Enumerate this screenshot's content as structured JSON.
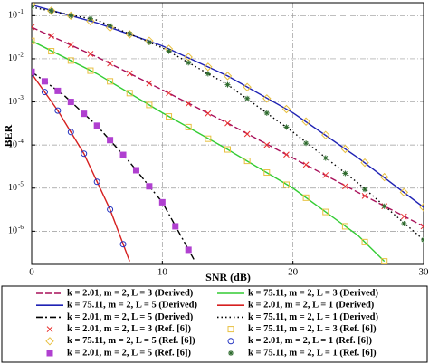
{
  "chart_data": {
    "type": "line",
    "x_label": "SNR (dB)",
    "y_label": "BER",
    "log_y": true,
    "grid": true,
    "xlim": [
      0,
      30
    ],
    "xticks": [
      0,
      10,
      20,
      30
    ],
    "ylim": [
      1.7e-07,
      0.2
    ],
    "yticks": [
      {
        "value": 1e-06,
        "label": "10",
        "exponent": "-6"
      },
      {
        "value": 1e-05,
        "label": "10",
        "exponent": "-5"
      },
      {
        "value": 0.0001,
        "label": "10",
        "exponent": "-4"
      },
      {
        "value": 0.001,
        "label": "10",
        "exponent": "-3"
      },
      {
        "value": 0.01,
        "label": "10",
        "exponent": "-2"
      },
      {
        "value": 0.1,
        "label": "10",
        "exponent": "-1"
      }
    ],
    "series": [
      {
        "name": "k = 2.01, m = 2, L = 3 (Derived)",
        "color": "#a8105a",
        "line": "dash",
        "x": [
          0,
          5,
          10,
          15,
          20,
          25,
          30
        ],
        "values": [
          0.054,
          0.011,
          0.0019,
          0.00032,
          5e-05,
          7.9e-06,
          1.3e-06
        ]
      },
      {
        "name": "k = 75.11, m = 2, L = 3 (Derived)",
        "color": "#33cc33",
        "line": "solid",
        "x": [
          0,
          5,
          10,
          15,
          20,
          25,
          27
        ],
        "values": [
          0.026,
          0.0045,
          0.00056,
          7.9e-05,
          1e-05,
          7.9e-07,
          2e-07
        ]
      },
      {
        "name": "k = 75.11, m = 2, L = 5 (Derived)",
        "color": "#1f22b4",
        "line": "solid",
        "x": [
          0,
          5,
          10,
          15,
          20,
          25,
          30
        ],
        "values": [
          0.178,
          0.068,
          0.02,
          0.004,
          0.00056,
          5e-05,
          3.6e-06
        ]
      },
      {
        "name": "k = 2.01, m = 2, L = 1 (Derived)",
        "color": "#d62020",
        "line": "solid",
        "x": [
          0,
          2,
          4,
          6,
          7.5
        ],
        "values": [
          0.0045,
          0.00063,
          6.3e-05,
          3.2e-06,
          2e-07
        ]
      },
      {
        "name": "k = 2.01, m = 2, L = 5 (Derived)",
        "color": "#000000",
        "line": "dashdot",
        "x": [
          0,
          2.5,
          5,
          7.5,
          10,
          12.5
        ],
        "values": [
          0.005,
          0.0014,
          0.00028,
          4e-05,
          4.7e-06,
          2e-07
        ]
      },
      {
        "name": "k = 75.11, m = 2, L = 1 (Derived)",
        "color": "#000000",
        "line": "dot",
        "x": [
          0,
          5,
          10,
          15,
          20,
          25,
          30
        ],
        "values": [
          0.158,
          0.079,
          0.018,
          0.0025,
          0.0002,
          1.3e-05,
          6.3e-07
        ]
      },
      {
        "name": "k = 2.01, m = 2, L = 3 (Ref. [6])",
        "color": "#e8312f",
        "marker": "x",
        "x": [
          0,
          1.5,
          3,
          4.5,
          6,
          7.5,
          9,
          10.5,
          12,
          13.5,
          15,
          16.5,
          18,
          19.5,
          21,
          22.5,
          24,
          25.5,
          27,
          28.5,
          30
        ],
        "values": [
          0.054,
          0.034,
          0.021,
          0.013,
          0.0078,
          0.0046,
          0.0027,
          0.0016,
          0.00091,
          0.00054,
          0.00032,
          0.00018,
          0.0001,
          6e-05,
          3.5e-05,
          2e-05,
          1.1e-05,
          6.6e-06,
          3.8e-06,
          2.2e-06,
          1.3e-06
        ]
      },
      {
        "name": "k = 75.11, m = 2, L = 3 (Ref. [6])",
        "color": "#e8c040",
        "marker": "square",
        "x": [
          0,
          1.5,
          3,
          4.5,
          6,
          7.5,
          9,
          10.5,
          12,
          13.5,
          15,
          16.5,
          18,
          19.5,
          21,
          22.5,
          24,
          25.5,
          27
        ],
        "values": [
          0.026,
          0.015,
          0.0091,
          0.0053,
          0.003,
          0.0016,
          0.00085,
          0.00046,
          0.00026,
          0.00014,
          7.9e-05,
          4.3e-05,
          2.3e-05,
          1.2e-05,
          6e-06,
          2.8e-06,
          1.3e-06,
          5.6e-07,
          2e-07
        ]
      },
      {
        "name": "k = 75.11, m = 2, L = 5 (Ref. [6])",
        "color": "#e8c040",
        "marker": "diamond",
        "x": [
          0,
          1.5,
          3,
          4.5,
          6,
          7.5,
          9,
          10.5,
          12,
          13.5,
          15,
          16.5,
          18,
          19.5,
          21,
          22.5,
          24,
          25.5,
          27,
          28.5,
          30
        ],
        "values": [
          0.18,
          0.13,
          0.1,
          0.074,
          0.053,
          0.037,
          0.026,
          0.017,
          0.011,
          0.0065,
          0.004,
          0.0022,
          0.0012,
          0.00068,
          0.00035,
          0.00017,
          8.1e-05,
          3.9e-05,
          1.8e-05,
          8e-06,
          3.6e-06
        ]
      },
      {
        "name": "k = 2.01, m = 2, L = 1 (Ref. [6])",
        "color": "#2030c0",
        "marker": "circle",
        "x": [
          0,
          1,
          2,
          3,
          4,
          5,
          6,
          7
        ],
        "values": [
          0.0045,
          0.0017,
          0.00063,
          0.0002,
          6.3e-05,
          1.4e-05,
          3.2e-06,
          5e-07
        ]
      },
      {
        "name": "k = 2.01, m = 2, L = 5 (Ref. [6])",
        "color": "#b040d0",
        "marker": "filled-square",
        "x": [
          0,
          1,
          2,
          3,
          4,
          5,
          6,
          7,
          8,
          9,
          10,
          11,
          12
        ],
        "values": [
          0.005,
          0.003,
          0.0018,
          0.001,
          0.00053,
          0.00028,
          0.00013,
          5.9e-05,
          2.6e-05,
          1.1e-05,
          4.7e-06,
          1.3e-06,
          3.7e-07
        ]
      },
      {
        "name": "k = 75.11, m = 2, L = 1 (Ref. [6])",
        "color": "#2e6b2e",
        "marker": "star",
        "x": [
          0,
          1.5,
          3,
          4.5,
          6,
          7.5,
          9,
          10.5,
          12,
          13.5,
          15,
          16.5,
          18,
          19.5,
          21,
          22.5,
          24,
          25.5,
          27,
          28.5,
          30
        ],
        "values": [
          0.16,
          0.13,
          0.1,
          0.085,
          0.059,
          0.038,
          0.024,
          0.015,
          0.0081,
          0.0045,
          0.0025,
          0.0012,
          0.00055,
          0.00026,
          0.00011,
          5e-05,
          2.2e-05,
          9.3e-06,
          3.8e-06,
          1.5e-06,
          6.3e-07
        ]
      }
    ]
  }
}
